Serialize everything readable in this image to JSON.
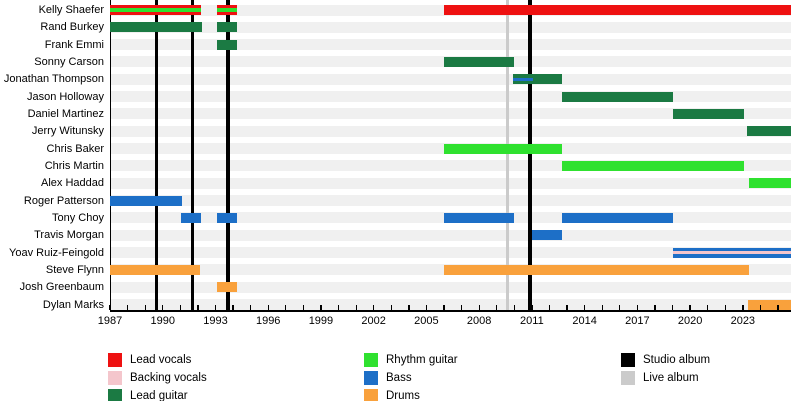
{
  "chart_data": {
    "type": "bar",
    "subtype": "band-member-gantt-timeline",
    "title": "",
    "x_axis": {
      "min": 1987,
      "max": 2025.74,
      "major_tick_labels": [
        "1987",
        "1990",
        "1993",
        "1996",
        "1999",
        "2002",
        "2005",
        "2008",
        "2011",
        "2014",
        "2017",
        "2020",
        "2023"
      ],
      "major_tick_interval_years": 3,
      "minor_tick_interval_years": 1,
      "minor_tick_start": 1987,
      "minor_tick_end": 2025
    },
    "role_colors": {
      "lead_vocals": "#ee1111",
      "backing_vocals": "#f4c6cc",
      "lead_guitar": "#1b7a43",
      "rhythm_guitar": "#2fe12f",
      "bass": "#1d6fc7",
      "drums": "#f9a13c",
      "studio_album": "#000000",
      "live_album": "#cbcbcb"
    },
    "row_stripe_color": "#f0f0f0",
    "members": [
      {
        "name": "Kelly Shaefer",
        "bars": [
          {
            "start": 1987,
            "end": 1992.2,
            "role": "lead_vocals"
          },
          {
            "start": 1993.1,
            "end": 1994.2,
            "role": "lead_vocals"
          },
          {
            "start": 2006,
            "end": 2025.74,
            "role": "lead_vocals"
          }
        ],
        "overlays": [
          {
            "start": 1987,
            "end": 1992.2,
            "role": "rhythm_guitar"
          },
          {
            "start": 1993.1,
            "end": 1994.2,
            "role": "rhythm_guitar"
          }
        ]
      },
      {
        "name": "Rand Burkey",
        "bars": [
          {
            "start": 1987,
            "end": 1992.25,
            "role": "lead_guitar"
          },
          {
            "start": 1993.1,
            "end": 1994.2,
            "role": "lead_guitar"
          }
        ],
        "overlays": []
      },
      {
        "name": "Frank Emmi",
        "bars": [
          {
            "start": 1993.1,
            "end": 1994.2,
            "role": "lead_guitar"
          }
        ],
        "overlays": []
      },
      {
        "name": "Sonny Carson",
        "bars": [
          {
            "start": 2006,
            "end": 2010,
            "role": "lead_guitar"
          }
        ],
        "overlays": []
      },
      {
        "name": "Jonathan Thompson",
        "bars": [
          {
            "start": 2009.9,
            "end": 2012.7,
            "role": "lead_guitar"
          }
        ],
        "overlays": [
          {
            "start": 2009.9,
            "end": 2011.05,
            "role": "bass"
          }
        ]
      },
      {
        "name": "Jason Holloway",
        "bars": [
          {
            "start": 2012.7,
            "end": 2019.05,
            "role": "lead_guitar"
          }
        ],
        "overlays": []
      },
      {
        "name": "Daniel Martinez",
        "bars": [
          {
            "start": 2019.05,
            "end": 2023.05,
            "role": "lead_guitar"
          }
        ],
        "overlays": []
      },
      {
        "name": "Jerry Witunsky",
        "bars": [
          {
            "start": 2023.25,
            "end": 2025.74,
            "role": "lead_guitar"
          }
        ],
        "overlays": []
      },
      {
        "name": "Chris Baker",
        "bars": [
          {
            "start": 2006,
            "end": 2012.7,
            "role": "rhythm_guitar"
          }
        ],
        "overlays": []
      },
      {
        "name": "Chris Martin",
        "bars": [
          {
            "start": 2012.7,
            "end": 2023.05,
            "role": "rhythm_guitar"
          }
        ],
        "overlays": []
      },
      {
        "name": "Alex Haddad",
        "bars": [
          {
            "start": 2023.35,
            "end": 2025.74,
            "role": "rhythm_guitar"
          }
        ],
        "overlays": []
      },
      {
        "name": "Roger Patterson",
        "bars": [
          {
            "start": 1987,
            "end": 1991.1,
            "role": "bass"
          }
        ],
        "overlays": []
      },
      {
        "name": "Tony Choy",
        "bars": [
          {
            "start": 1991.05,
            "end": 1992.2,
            "role": "bass"
          },
          {
            "start": 1993.1,
            "end": 1994.2,
            "role": "bass"
          },
          {
            "start": 2006,
            "end": 2010,
            "role": "bass"
          },
          {
            "start": 2012.7,
            "end": 2019.05,
            "role": "bass"
          }
        ],
        "overlays": []
      },
      {
        "name": "Travis Morgan",
        "bars": [
          {
            "start": 2011,
            "end": 2012.7,
            "role": "bass"
          }
        ],
        "overlays": []
      },
      {
        "name": "Yoav Ruiz-Feingold",
        "bars": [
          {
            "start": 2019.05,
            "end": 2025.74,
            "role": "bass"
          }
        ],
        "overlays": [
          {
            "start": 2019.05,
            "end": 2025.74,
            "role": "backing_vocals"
          }
        ]
      },
      {
        "name": "Steve Flynn",
        "bars": [
          {
            "start": 1987,
            "end": 1992.1,
            "role": "drums"
          },
          {
            "start": 2006,
            "end": 2023.35,
            "role": "drums"
          }
        ],
        "overlays": []
      },
      {
        "name": "Josh Greenbaum",
        "bars": [
          {
            "start": 1993.1,
            "end": 1994.2,
            "role": "drums"
          }
        ],
        "overlays": []
      },
      {
        "name": "Dylan Marks",
        "bars": [
          {
            "start": 2023.3,
            "end": 2025.74,
            "role": "drums"
          }
        ],
        "overlays": []
      }
    ],
    "album_markers": {
      "studio": [
        1989.65,
        1991.7,
        1993.7,
        2010.9
      ],
      "live": [
        2009.6
      ]
    },
    "legend": [
      {
        "label": "Lead vocals",
        "role": "lead_vocals",
        "column": 0,
        "row": 0
      },
      {
        "label": "Backing vocals",
        "role": "backing_vocals",
        "column": 0,
        "row": 1
      },
      {
        "label": "Lead guitar",
        "role": "lead_guitar",
        "column": 0,
        "row": 2
      },
      {
        "label": "Rhythm guitar",
        "role": "rhythm_guitar",
        "column": 1,
        "row": 0
      },
      {
        "label": "Bass",
        "role": "bass",
        "column": 1,
        "row": 1
      },
      {
        "label": "Drums",
        "role": "drums",
        "column": 1,
        "row": 2
      },
      {
        "label": "Studio album",
        "role": "studio_album",
        "column": 2,
        "row": 0
      },
      {
        "label": "Live album",
        "role": "live_album",
        "column": 2,
        "row": 1
      }
    ]
  }
}
